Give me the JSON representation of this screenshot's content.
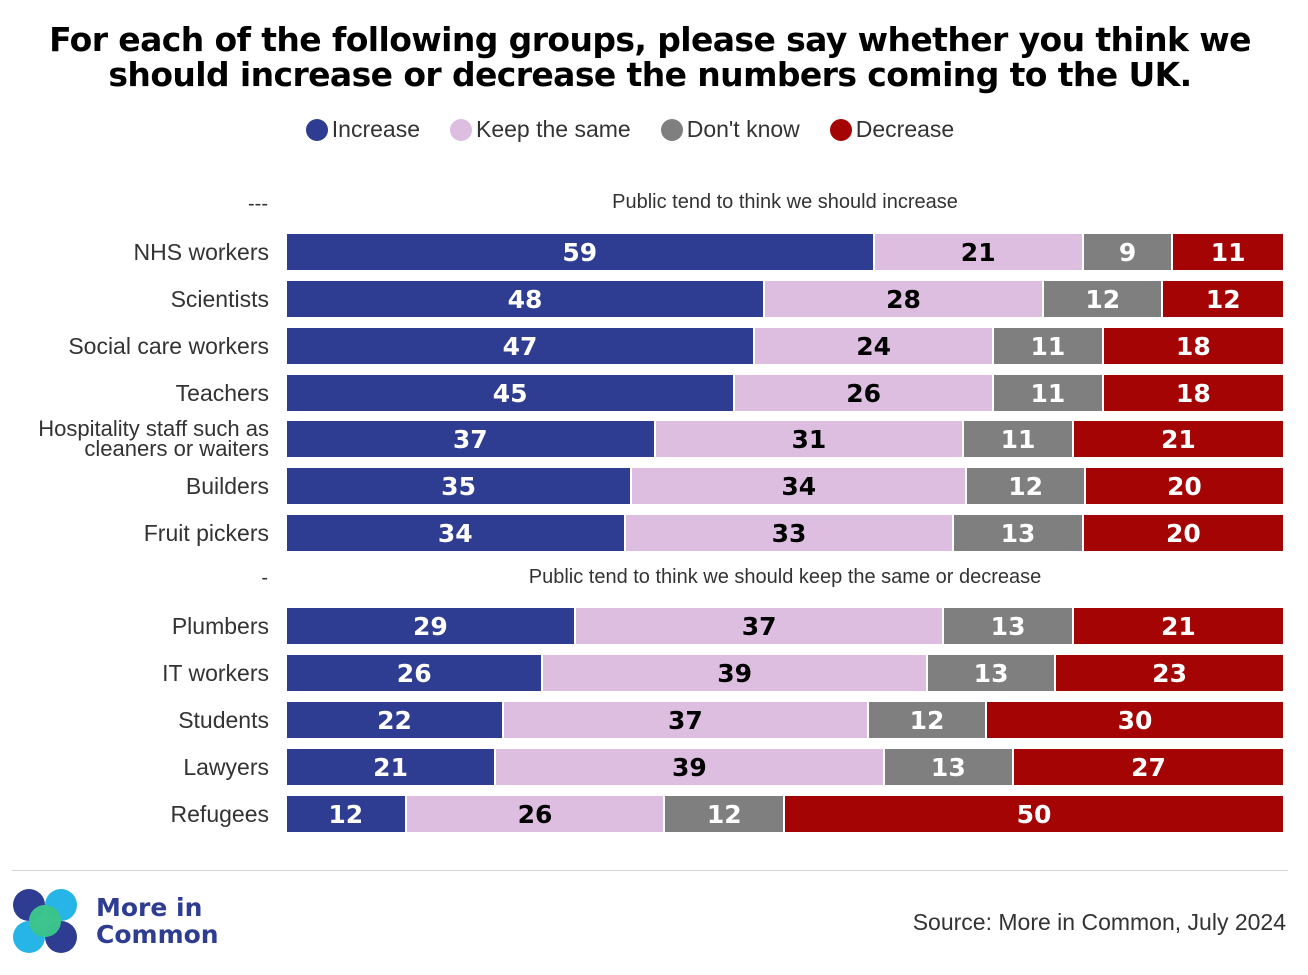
{
  "title_lines": [
    "For each of the following groups, please say whether you think we",
    "should increase or decrease the numbers coming to the UK."
  ],
  "source": "Source: More in Common, July 2024",
  "brand": {
    "line1": "More in",
    "line2": "Common"
  },
  "chart_data": {
    "type": "bar",
    "orientation": "horizontal-stacked-100",
    "legend_position": "top",
    "series": [
      {
        "name": "Increase",
        "color": "#2e3d91"
      },
      {
        "name": "Keep the same",
        "color": "#ddbde0"
      },
      {
        "name": "Don't know",
        "color": "#7f7f7f"
      },
      {
        "name": "Decrease",
        "color": "#a50404"
      }
    ],
    "groups": [
      {
        "marker": "---",
        "heading": "Public tend to think we should increase",
        "rows": [
          {
            "label": [
              "NHS workers"
            ],
            "values": [
              59,
              21,
              9,
              11
            ]
          },
          {
            "label": [
              "Scientists"
            ],
            "values": [
              48,
              28,
              12,
              12
            ]
          },
          {
            "label": [
              "Social care workers"
            ],
            "values": [
              47,
              24,
              11,
              18
            ]
          },
          {
            "label": [
              "Teachers"
            ],
            "values": [
              45,
              26,
              11,
              18
            ]
          },
          {
            "label": [
              "Hospitality staff such as",
              "cleaners or waiters"
            ],
            "values": [
              37,
              31,
              11,
              21
            ]
          },
          {
            "label": [
              "Builders"
            ],
            "values": [
              35,
              34,
              12,
              20
            ]
          },
          {
            "label": [
              "Fruit pickers"
            ],
            "values": [
              34,
              33,
              13,
              20
            ]
          }
        ]
      },
      {
        "marker": "-",
        "heading": "Public tend to think we should keep the same or decrease",
        "rows": [
          {
            "label": [
              "Plumbers"
            ],
            "values": [
              29,
              37,
              13,
              21
            ]
          },
          {
            "label": [
              "IT workers"
            ],
            "values": [
              26,
              39,
              13,
              23
            ]
          },
          {
            "label": [
              "Students"
            ],
            "values": [
              22,
              37,
              12,
              30
            ]
          },
          {
            "label": [
              "Lawyers"
            ],
            "values": [
              21,
              39,
              13,
              27
            ]
          },
          {
            "label": [
              "Refugees"
            ],
            "values": [
              12,
              26,
              12,
              50
            ]
          }
        ]
      }
    ]
  }
}
